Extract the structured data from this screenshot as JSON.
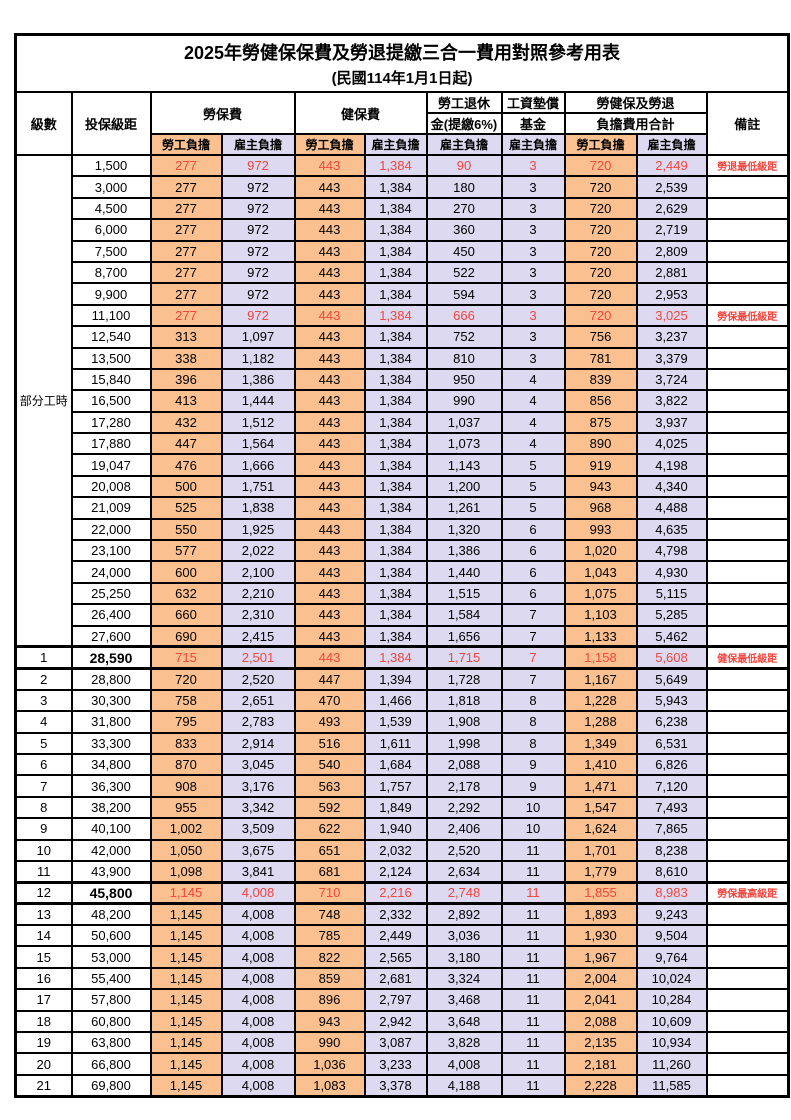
{
  "title": "2025年勞健保保費及勞退提繳三合一費用對照參考用表",
  "subtitle": "(民國114年1月1日起)",
  "colors": {
    "employee_bg": "#FAC090",
    "employer_bg": "#DCD9F0",
    "highlight_red": "#F4453E",
    "border": "#000000"
  },
  "header": {
    "level": "級數",
    "bracket": "投保級距",
    "labor_insurance": "勞保費",
    "health_insurance": "健保費",
    "pension_line1": "勞工退休",
    "pension_line2": "金(提繳6%)",
    "wage_fund_line1": "工資墊償",
    "wage_fund_line2": "基金",
    "total_line1": "勞健保及勞退",
    "total_line2": "負擔費用合計",
    "remark": "備註",
    "employee": "勞工負擔",
    "employer": "雇主負擔"
  },
  "part_time": {
    "label": "部分工時",
    "rowspan": 23
  },
  "rows": [
    {
      "level": "",
      "bracket": "1,500",
      "cells": [
        "277",
        "972",
        "443",
        "1,384",
        "90",
        "3",
        "720",
        "2,449"
      ],
      "remark": "勞退最低級距",
      "red": true,
      "bold": false,
      "thick": false
    },
    {
      "level": "",
      "bracket": "3,000",
      "cells": [
        "277",
        "972",
        "443",
        "1,384",
        "180",
        "3",
        "720",
        "2,539"
      ],
      "remark": "",
      "red": false,
      "bold": false,
      "thick": false
    },
    {
      "level": "",
      "bracket": "4,500",
      "cells": [
        "277",
        "972",
        "443",
        "1,384",
        "270",
        "3",
        "720",
        "2,629"
      ],
      "remark": "",
      "red": false,
      "bold": false,
      "thick": false
    },
    {
      "level": "",
      "bracket": "6,000",
      "cells": [
        "277",
        "972",
        "443",
        "1,384",
        "360",
        "3",
        "720",
        "2,719"
      ],
      "remark": "",
      "red": false,
      "bold": false,
      "thick": false
    },
    {
      "level": "",
      "bracket": "7,500",
      "cells": [
        "277",
        "972",
        "443",
        "1,384",
        "450",
        "3",
        "720",
        "2,809"
      ],
      "remark": "",
      "red": false,
      "bold": false,
      "thick": false
    },
    {
      "level": "",
      "bracket": "8,700",
      "cells": [
        "277",
        "972",
        "443",
        "1,384",
        "522",
        "3",
        "720",
        "2,881"
      ],
      "remark": "",
      "red": false,
      "bold": false,
      "thick": false
    },
    {
      "level": "",
      "bracket": "9,900",
      "cells": [
        "277",
        "972",
        "443",
        "1,384",
        "594",
        "3",
        "720",
        "2,953"
      ],
      "remark": "",
      "red": false,
      "bold": false,
      "thick": false
    },
    {
      "level": "",
      "bracket": "11,100",
      "cells": [
        "277",
        "972",
        "443",
        "1,384",
        "666",
        "3",
        "720",
        "3,025"
      ],
      "remark": "勞保最低級距",
      "red": true,
      "bold": false,
      "thick": false
    },
    {
      "level": "",
      "bracket": "12,540",
      "cells": [
        "313",
        "1,097",
        "443",
        "1,384",
        "752",
        "3",
        "756",
        "3,237"
      ],
      "remark": "",
      "red": false,
      "bold": false,
      "thick": false
    },
    {
      "level": "",
      "bracket": "13,500",
      "cells": [
        "338",
        "1,182",
        "443",
        "1,384",
        "810",
        "3",
        "781",
        "3,379"
      ],
      "remark": "",
      "red": false,
      "bold": false,
      "thick": false
    },
    {
      "level": "",
      "bracket": "15,840",
      "cells": [
        "396",
        "1,386",
        "443",
        "1,384",
        "950",
        "4",
        "839",
        "3,724"
      ],
      "remark": "",
      "red": false,
      "bold": false,
      "thick": false
    },
    {
      "level": "",
      "bracket": "16,500",
      "cells": [
        "413",
        "1,444",
        "443",
        "1,384",
        "990",
        "4",
        "856",
        "3,822"
      ],
      "remark": "",
      "red": false,
      "bold": false,
      "thick": false
    },
    {
      "level": "",
      "bracket": "17,280",
      "cells": [
        "432",
        "1,512",
        "443",
        "1,384",
        "1,037",
        "4",
        "875",
        "3,937"
      ],
      "remark": "",
      "red": false,
      "bold": false,
      "thick": false
    },
    {
      "level": "",
      "bracket": "17,880",
      "cells": [
        "447",
        "1,564",
        "443",
        "1,384",
        "1,073",
        "4",
        "890",
        "4,025"
      ],
      "remark": "",
      "red": false,
      "bold": false,
      "thick": false
    },
    {
      "level": "",
      "bracket": "19,047",
      "cells": [
        "476",
        "1,666",
        "443",
        "1,384",
        "1,143",
        "5",
        "919",
        "4,198"
      ],
      "remark": "",
      "red": false,
      "bold": false,
      "thick": false
    },
    {
      "level": "",
      "bracket": "20,008",
      "cells": [
        "500",
        "1,751",
        "443",
        "1,384",
        "1,200",
        "5",
        "943",
        "4,340"
      ],
      "remark": "",
      "red": false,
      "bold": false,
      "thick": false
    },
    {
      "level": "",
      "bracket": "21,009",
      "cells": [
        "525",
        "1,838",
        "443",
        "1,384",
        "1,261",
        "5",
        "968",
        "4,488"
      ],
      "remark": "",
      "red": false,
      "bold": false,
      "thick": false
    },
    {
      "level": "",
      "bracket": "22,000",
      "cells": [
        "550",
        "1,925",
        "443",
        "1,384",
        "1,320",
        "6",
        "993",
        "4,635"
      ],
      "remark": "",
      "red": false,
      "bold": false,
      "thick": false
    },
    {
      "level": "",
      "bracket": "23,100",
      "cells": [
        "577",
        "2,022",
        "443",
        "1,384",
        "1,386",
        "6",
        "1,020",
        "4,798"
      ],
      "remark": "",
      "red": false,
      "bold": false,
      "thick": false
    },
    {
      "level": "",
      "bracket": "24,000",
      "cells": [
        "600",
        "2,100",
        "443",
        "1,384",
        "1,440",
        "6",
        "1,043",
        "4,930"
      ],
      "remark": "",
      "red": false,
      "bold": false,
      "thick": false
    },
    {
      "level": "",
      "bracket": "25,250",
      "cells": [
        "632",
        "2,210",
        "443",
        "1,384",
        "1,515",
        "6",
        "1,075",
        "5,115"
      ],
      "remark": "",
      "red": false,
      "bold": false,
      "thick": false
    },
    {
      "level": "",
      "bracket": "26,400",
      "cells": [
        "660",
        "2,310",
        "443",
        "1,384",
        "1,584",
        "7",
        "1,103",
        "5,285"
      ],
      "remark": "",
      "red": false,
      "bold": false,
      "thick": false
    },
    {
      "level": "",
      "bracket": "27,600",
      "cells": [
        "690",
        "2,415",
        "443",
        "1,384",
        "1,656",
        "7",
        "1,133",
        "5,462"
      ],
      "remark": "",
      "red": false,
      "bold": false,
      "thick": false
    },
    {
      "level": "1",
      "bracket": "28,590",
      "cells": [
        "715",
        "2,501",
        "443",
        "1,384",
        "1,715",
        "7",
        "1,158",
        "5,608"
      ],
      "remark": "健保最低級距",
      "red": true,
      "bold": true,
      "thick": true
    },
    {
      "level": "2",
      "bracket": "28,800",
      "cells": [
        "720",
        "2,520",
        "447",
        "1,394",
        "1,728",
        "7",
        "1,167",
        "5,649"
      ],
      "remark": "",
      "red": false,
      "bold": false,
      "thick": false
    },
    {
      "level": "3",
      "bracket": "30,300",
      "cells": [
        "758",
        "2,651",
        "470",
        "1,466",
        "1,818",
        "8",
        "1,228",
        "5,943"
      ],
      "remark": "",
      "red": false,
      "bold": false,
      "thick": false
    },
    {
      "level": "4",
      "bracket": "31,800",
      "cells": [
        "795",
        "2,783",
        "493",
        "1,539",
        "1,908",
        "8",
        "1,288",
        "6,238"
      ],
      "remark": "",
      "red": false,
      "bold": false,
      "thick": false
    },
    {
      "level": "5",
      "bracket": "33,300",
      "cells": [
        "833",
        "2,914",
        "516",
        "1,611",
        "1,998",
        "8",
        "1,349",
        "6,531"
      ],
      "remark": "",
      "red": false,
      "bold": false,
      "thick": false
    },
    {
      "level": "6",
      "bracket": "34,800",
      "cells": [
        "870",
        "3,045",
        "540",
        "1,684",
        "2,088",
        "9",
        "1,410",
        "6,826"
      ],
      "remark": "",
      "red": false,
      "bold": false,
      "thick": false
    },
    {
      "level": "7",
      "bracket": "36,300",
      "cells": [
        "908",
        "3,176",
        "563",
        "1,757",
        "2,178",
        "9",
        "1,471",
        "7,120"
      ],
      "remark": "",
      "red": false,
      "bold": false,
      "thick": false
    },
    {
      "level": "8",
      "bracket": "38,200",
      "cells": [
        "955",
        "3,342",
        "592",
        "1,849",
        "2,292",
        "10",
        "1,547",
        "7,493"
      ],
      "remark": "",
      "red": false,
      "bold": false,
      "thick": false
    },
    {
      "level": "9",
      "bracket": "40,100",
      "cells": [
        "1,002",
        "3,509",
        "622",
        "1,940",
        "2,406",
        "10",
        "1,624",
        "7,865"
      ],
      "remark": "",
      "red": false,
      "bold": false,
      "thick": false
    },
    {
      "level": "10",
      "bracket": "42,000",
      "cells": [
        "1,050",
        "3,675",
        "651",
        "2,032",
        "2,520",
        "11",
        "1,701",
        "8,238"
      ],
      "remark": "",
      "red": false,
      "bold": false,
      "thick": false
    },
    {
      "level": "11",
      "bracket": "43,900",
      "cells": [
        "1,098",
        "3,841",
        "681",
        "2,124",
        "2,634",
        "11",
        "1,779",
        "8,610"
      ],
      "remark": "",
      "red": false,
      "bold": false,
      "thick": false
    },
    {
      "level": "12",
      "bracket": "45,800",
      "cells": [
        "1,145",
        "4,008",
        "710",
        "2,216",
        "2,748",
        "11",
        "1,855",
        "8,983"
      ],
      "remark": "勞保最高級距",
      "red": true,
      "bold": true,
      "thick": true
    },
    {
      "level": "13",
      "bracket": "48,200",
      "cells": [
        "1,145",
        "4,008",
        "748",
        "2,332",
        "2,892",
        "11",
        "1,893",
        "9,243"
      ],
      "remark": "",
      "red": false,
      "bold": false,
      "thick": false
    },
    {
      "level": "14",
      "bracket": "50,600",
      "cells": [
        "1,145",
        "4,008",
        "785",
        "2,449",
        "3,036",
        "11",
        "1,930",
        "9,504"
      ],
      "remark": "",
      "red": false,
      "bold": false,
      "thick": false
    },
    {
      "level": "15",
      "bracket": "53,000",
      "cells": [
        "1,145",
        "4,008",
        "822",
        "2,565",
        "3,180",
        "11",
        "1,967",
        "9,764"
      ],
      "remark": "",
      "red": false,
      "bold": false,
      "thick": false
    },
    {
      "level": "16",
      "bracket": "55,400",
      "cells": [
        "1,145",
        "4,008",
        "859",
        "2,681",
        "3,324",
        "11",
        "2,004",
        "10,024"
      ],
      "remark": "",
      "red": false,
      "bold": false,
      "thick": false
    },
    {
      "level": "17",
      "bracket": "57,800",
      "cells": [
        "1,145",
        "4,008",
        "896",
        "2,797",
        "3,468",
        "11",
        "2,041",
        "10,284"
      ],
      "remark": "",
      "red": false,
      "bold": false,
      "thick": false
    },
    {
      "level": "18",
      "bracket": "60,800",
      "cells": [
        "1,145",
        "4,008",
        "943",
        "2,942",
        "3,648",
        "11",
        "2,088",
        "10,609"
      ],
      "remark": "",
      "red": false,
      "bold": false,
      "thick": false
    },
    {
      "level": "19",
      "bracket": "63,800",
      "cells": [
        "1,145",
        "4,008",
        "990",
        "3,087",
        "3,828",
        "11",
        "2,135",
        "10,934"
      ],
      "remark": "",
      "red": false,
      "bold": false,
      "thick": false
    },
    {
      "level": "20",
      "bracket": "66,800",
      "cells": [
        "1,145",
        "4,008",
        "1,036",
        "3,233",
        "4,008",
        "11",
        "2,181",
        "11,260"
      ],
      "remark": "",
      "red": false,
      "bold": false,
      "thick": false
    },
    {
      "level": "21",
      "bracket": "69,800",
      "cells": [
        "1,145",
        "4,008",
        "1,083",
        "3,378",
        "4,188",
        "11",
        "2,228",
        "11,585"
      ],
      "remark": "",
      "red": false,
      "bold": false,
      "thick": false
    }
  ]
}
